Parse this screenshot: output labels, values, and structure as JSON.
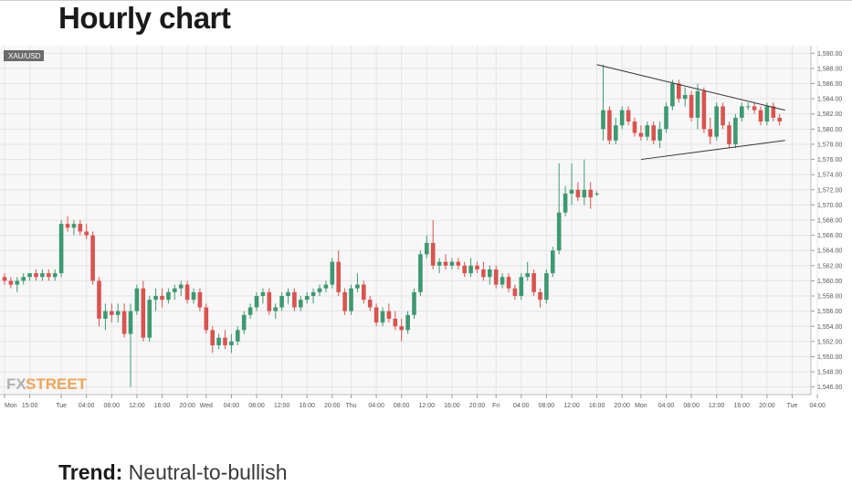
{
  "page": {
    "title": "Hourly chart"
  },
  "trend": {
    "label": "Trend:",
    "value": "Neutral-to-bullish"
  },
  "chart_data": {
    "type": "candlestick",
    "symbol": "XAU/USD",
    "watermark": {
      "part1": "FX",
      "part2": "STREET"
    },
    "colors": {
      "up": "#3d9970",
      "down": "#d9534f",
      "grid": "#e4e4e4",
      "background": "#f7f7f7"
    },
    "ylim": [
      1545,
      1591
    ],
    "yticks": [
      "1,546.00",
      "1,548.00",
      "1,550.00",
      "1,552.00",
      "1,554.00",
      "1,556.00",
      "1,558.00",
      "1,560.00",
      "1,562.00",
      "1,564.00",
      "1,566.00",
      "1,568.00",
      "1,570.00",
      "1,572.00",
      "1,574.00",
      "1,576.00",
      "1,578.00",
      "1,580.00",
      "1,582.00",
      "1,584.00",
      "1,586.00",
      "1,588.00",
      "1,590.00"
    ],
    "xticks": [
      "Mon",
      "15:00",
      "Tue",
      "04:00",
      "08:00",
      "12:00",
      "16:00",
      "20:00",
      "Wed",
      "04:00",
      "08:00",
      "12:00",
      "16:00",
      "20:00",
      "Thu",
      "04:00",
      "08:00",
      "12:00",
      "16:00",
      "20:00",
      "Fri",
      "04:00",
      "08:00",
      "12:00",
      "16:00",
      "20:00",
      "Mon",
      "04:00",
      "08:00",
      "12:00",
      "16:00",
      "20:00",
      "Tue",
      "04:00"
    ],
    "candles": [
      [
        1560.5,
        1561,
        1559.5,
        1560
      ],
      [
        1560,
        1560.5,
        1559,
        1559.5
      ],
      [
        1559.5,
        1560.5,
        1558.5,
        1560
      ],
      [
        1560,
        1561,
        1559.5,
        1560.5
      ],
      [
        1560.5,
        1561,
        1560,
        1561
      ],
      [
        1561,
        1561.5,
        1560,
        1560.5
      ],
      [
        1560.5,
        1561.5,
        1560,
        1561
      ],
      [
        1561,
        1561.5,
        1560,
        1560.5
      ],
      [
        1560.5,
        1561.5,
        1560,
        1561
      ],
      [
        1561,
        1568,
        1560.5,
        1567.5
      ],
      [
        1567.5,
        1568.5,
        1566.5,
        1567
      ],
      [
        1567,
        1568,
        1566,
        1567.5
      ],
      [
        1567.5,
        1568,
        1566,
        1566.5
      ],
      [
        1566.5,
        1567.5,
        1565.5,
        1566
      ],
      [
        1566,
        1566.5,
        1559.5,
        1560
      ],
      [
        1560,
        1560.5,
        1554,
        1555
      ],
      [
        1555,
        1557,
        1553.5,
        1556
      ],
      [
        1556,
        1557,
        1554.5,
        1555.5
      ],
      [
        1555.5,
        1557,
        1554.5,
        1556
      ],
      [
        1556,
        1557,
        1552.5,
        1553
      ],
      [
        1553,
        1557,
        1546,
        1556
      ],
      [
        1556,
        1559.5,
        1555.5,
        1559
      ],
      [
        1559,
        1560,
        1552,
        1552.5
      ],
      [
        1552.5,
        1558,
        1552,
        1557.5
      ],
      [
        1557.5,
        1559,
        1556,
        1558
      ],
      [
        1558,
        1559,
        1556.5,
        1557.5
      ],
      [
        1557.5,
        1559,
        1557,
        1558.5
      ],
      [
        1558.5,
        1559.5,
        1557.5,
        1559
      ],
      [
        1559,
        1560,
        1558,
        1559.5
      ],
      [
        1559.5,
        1560,
        1557,
        1557.5
      ],
      [
        1557.5,
        1559,
        1557,
        1558.5
      ],
      [
        1558.5,
        1559,
        1556,
        1556.5
      ],
      [
        1556.5,
        1557,
        1553,
        1553.5
      ],
      [
        1553.5,
        1554,
        1550.5,
        1551.5
      ],
      [
        1551.5,
        1553,
        1551,
        1552.5
      ],
      [
        1552.5,
        1553.5,
        1551,
        1551.5
      ],
      [
        1551.5,
        1553,
        1550.5,
        1552
      ],
      [
        1552,
        1554,
        1551.5,
        1553.5
      ],
      [
        1553.5,
        1556,
        1553,
        1555.5
      ],
      [
        1555.5,
        1557,
        1555,
        1556.5
      ],
      [
        1556.5,
        1558.5,
        1556,
        1558
      ],
      [
        1558,
        1559,
        1557,
        1558.5
      ],
      [
        1558.5,
        1559,
        1555.5,
        1556
      ],
      [
        1556,
        1557,
        1555,
        1556.5
      ],
      [
        1556.5,
        1558.5,
        1556,
        1558
      ],
      [
        1558,
        1559,
        1557,
        1558.5
      ],
      [
        1558.5,
        1559,
        1556,
        1556.5
      ],
      [
        1556.5,
        1558,
        1556,
        1557.5
      ],
      [
        1557.5,
        1558.5,
        1557,
        1558
      ],
      [
        1558,
        1559,
        1557,
        1558.5
      ],
      [
        1558.5,
        1559.5,
        1558,
        1559
      ],
      [
        1559,
        1560,
        1558.5,
        1559.5
      ],
      [
        1559.5,
        1563,
        1559,
        1562.5
      ],
      [
        1562.5,
        1564,
        1558,
        1558.5
      ],
      [
        1558.5,
        1559,
        1555.5,
        1556
      ],
      [
        1556,
        1559.5,
        1555.5,
        1559
      ],
      [
        1559,
        1561,
        1558.5,
        1559.5
      ],
      [
        1559.5,
        1560,
        1557,
        1557.5
      ],
      [
        1557.5,
        1558,
        1556,
        1556.5
      ],
      [
        1556.5,
        1557,
        1554,
        1554.5
      ],
      [
        1554.5,
        1556.5,
        1554,
        1556
      ],
      [
        1556,
        1557,
        1554.5,
        1555
      ],
      [
        1555,
        1556,
        1553.5,
        1554
      ],
      [
        1554,
        1555,
        1552,
        1553.5
      ],
      [
        1553.5,
        1556,
        1553,
        1555.5
      ],
      [
        1555.5,
        1559,
        1555,
        1558.5
      ],
      [
        1558.5,
        1564,
        1558,
        1563.5
      ],
      [
        1563.5,
        1566,
        1563,
        1565
      ],
      [
        1565,
        1568,
        1561.5,
        1562
      ],
      [
        1562,
        1563,
        1561,
        1562.5
      ],
      [
        1562.5,
        1563.5,
        1561.5,
        1562
      ],
      [
        1562,
        1563,
        1561.5,
        1562.5
      ],
      [
        1562.5,
        1563,
        1561.5,
        1562
      ],
      [
        1562,
        1562.5,
        1560.5,
        1561
      ],
      [
        1561,
        1563,
        1560.5,
        1562
      ],
      [
        1562,
        1562.5,
        1561,
        1561.5
      ],
      [
        1561.5,
        1562.5,
        1560,
        1560.5
      ],
      [
        1560.5,
        1562,
        1559.5,
        1561.5
      ],
      [
        1561.5,
        1562,
        1559,
        1559.5
      ],
      [
        1559.5,
        1561,
        1559,
        1560.5
      ],
      [
        1560.5,
        1561,
        1558.5,
        1559
      ],
      [
        1559,
        1559.5,
        1557.5,
        1558
      ],
      [
        1558,
        1561,
        1557.5,
        1560.5
      ],
      [
        1560.5,
        1562.5,
        1560,
        1561
      ],
      [
        1561,
        1561.5,
        1558,
        1558.5
      ],
      [
        1558.5,
        1559,
        1556.5,
        1557.5
      ],
      [
        1557.5,
        1561.5,
        1557,
        1561
      ],
      [
        1561,
        1564.5,
        1560.5,
        1564
      ],
      [
        1564,
        1575.5,
        1563.5,
        1569
      ],
      [
        1569,
        1572.5,
        1568.5,
        1571.5
      ],
      [
        1571.5,
        1575.5,
        1570,
        1572
      ],
      [
        1572,
        1573,
        1570.5,
        1571
      ],
      [
        1571,
        1576,
        1570,
        1572
      ],
      [
        1572,
        1573,
        1569.5,
        1571
      ],
      [
        1571.5,
        1571.8,
        1571.2,
        1571.5
      ],
      [
        1580,
        1588.5,
        1578.5,
        1582.5
      ],
      [
        1582.5,
        1583,
        1578,
        1578.5
      ],
      [
        1578.5,
        1581.5,
        1578,
        1580.5
      ],
      [
        1580.5,
        1583,
        1580,
        1582.5
      ],
      [
        1582.5,
        1583,
        1580.5,
        1581
      ],
      [
        1581,
        1581.5,
        1579,
        1579.5
      ],
      [
        1579.5,
        1580.5,
        1578.5,
        1579
      ],
      [
        1579,
        1581,
        1578.5,
        1580.5
      ],
      [
        1580.5,
        1581,
        1578,
        1578.5
      ],
      [
        1578.5,
        1581,
        1577.5,
        1580
      ],
      [
        1580,
        1583.5,
        1579.5,
        1583
      ],
      [
        1583,
        1586.5,
        1582.5,
        1586
      ],
      [
        1586,
        1586.5,
        1583.5,
        1584
      ],
      [
        1584,
        1585.5,
        1583,
        1584.5
      ],
      [
        1584.5,
        1585,
        1581,
        1581.5
      ],
      [
        1581.5,
        1586,
        1580,
        1585
      ],
      [
        1585,
        1585.5,
        1579.5,
        1580
      ],
      [
        1580,
        1581.5,
        1578,
        1579
      ],
      [
        1579,
        1583.5,
        1578.5,
        1583
      ],
      [
        1583,
        1583.5,
        1580,
        1580.5
      ],
      [
        1580.5,
        1581,
        1577.5,
        1578
      ],
      [
        1578,
        1582,
        1577.5,
        1581.5
      ],
      [
        1581.5,
        1583.5,
        1581,
        1583
      ],
      [
        1583,
        1583.5,
        1582.5,
        1583
      ],
      [
        1583,
        1583.5,
        1582,
        1582.5
      ],
      [
        1582.5,
        1583,
        1580.5,
        1581
      ],
      [
        1581,
        1583.5,
        1580.5,
        1583
      ],
      [
        1583,
        1583.5,
        1581,
        1581.5
      ],
      [
        1581.5,
        1582,
        1580.5,
        1581
      ]
    ],
    "trendlines": [
      {
        "from": [
          94,
          1588.5
        ],
        "to": [
          123,
          1582.5
        ]
      },
      {
        "from": [
          101,
          1576
        ],
        "to": [
          123,
          1578.5
        ]
      }
    ]
  }
}
